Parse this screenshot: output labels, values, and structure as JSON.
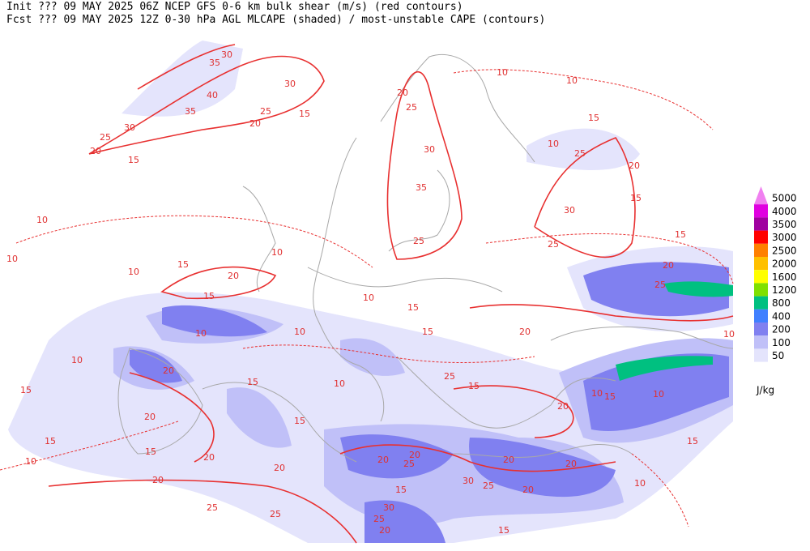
{
  "header": {
    "line1": "Init  ??? 09 MAY 2025 06Z  NCEP GFS 0-6 km bulk shear (m/s) (red contours)",
    "line2": "Fcst ??? 09 MAY 2025 12Z  0-30 hPa AGL MLCAPE (shaded) / most-unstable CAPE (contours)"
  },
  "legend": {
    "unit": "J/kg",
    "entries": [
      {
        "label": "5000",
        "color": "#f080f0"
      },
      {
        "label": "4000",
        "color": "#e000e0"
      },
      {
        "label": "3500",
        "color": "#a000a0"
      },
      {
        "label": "3000",
        "color": "#ff0000"
      },
      {
        "label": "2500",
        "color": "#ff8000"
      },
      {
        "label": "2000",
        "color": "#ffc000"
      },
      {
        "label": "1600",
        "color": "#ffff00"
      },
      {
        "label": "1200",
        "color": "#80e000"
      },
      {
        "label": "800",
        "color": "#00c080"
      },
      {
        "label": "400",
        "color": "#4080ff"
      },
      {
        "label": "200",
        "color": "#8080f0"
      },
      {
        "label": "100",
        "color": "#c0c0f8"
      },
      {
        "label": "50",
        "color": "#e4e4fc"
      }
    ]
  },
  "contour_labels": [
    30,
    35,
    40,
    35,
    25,
    30,
    15,
    20,
    30,
    25,
    20,
    15,
    20,
    25,
    30,
    35,
    25,
    10,
    10,
    15,
    10,
    25,
    20,
    15,
    30,
    25,
    15,
    10,
    10,
    10,
    15,
    20,
    10,
    15,
    10,
    10,
    10,
    15,
    15,
    20,
    20,
    25,
    20,
    10,
    15,
    10,
    15,
    20,
    15,
    15,
    15,
    10,
    20,
    20,
    20,
    25,
    25,
    20,
    25,
    20,
    15,
    30,
    25,
    20,
    20,
    20,
    10,
    15,
    10,
    20,
    15,
    10,
    30,
    25,
    20,
    15,
    10,
    25,
    15
  ]
}
